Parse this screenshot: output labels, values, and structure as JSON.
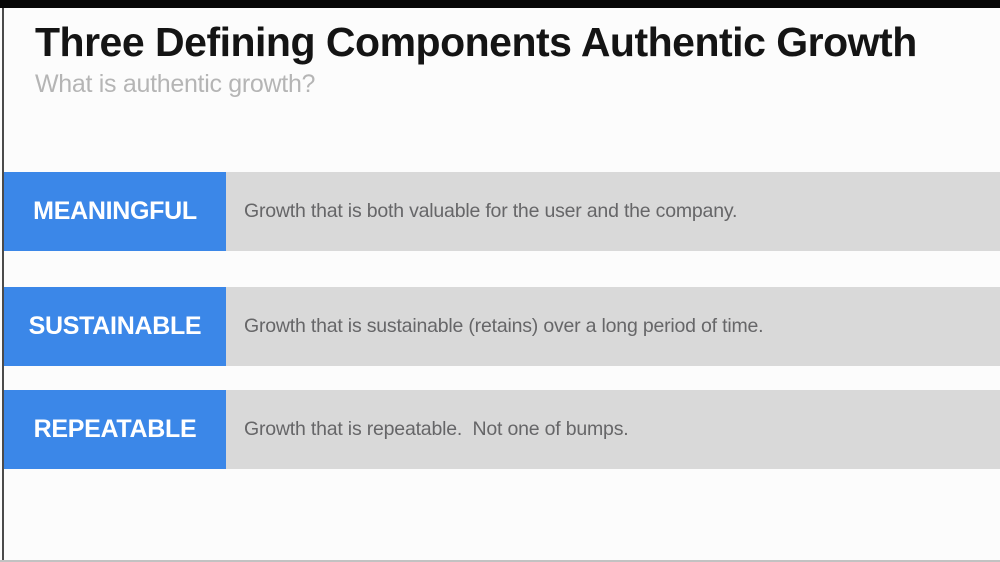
{
  "header": {
    "title": "Three Defining Components Authentic Growth",
    "subtitle": "What is authentic growth?"
  },
  "rows": [
    {
      "label": "MEANINGFUL",
      "description": "Growth that is both valuable for the user and the company."
    },
    {
      "label": "SUSTAINABLE",
      "description": "Growth that is sustainable (retains) over a long period of time."
    },
    {
      "label": "REPEATABLE",
      "description": "Growth that is repeatable.  Not one of bumps."
    }
  ],
  "colors": {
    "accent": "#3b87e8",
    "bar_bg": "#d9d9d9",
    "slide_bg": "#fcfcfc",
    "letterbox": "#070707",
    "title_text": "#141414",
    "subtitle_text": "#b5b5b5",
    "description_text": "#666668",
    "label_text": "#ffffff"
  }
}
